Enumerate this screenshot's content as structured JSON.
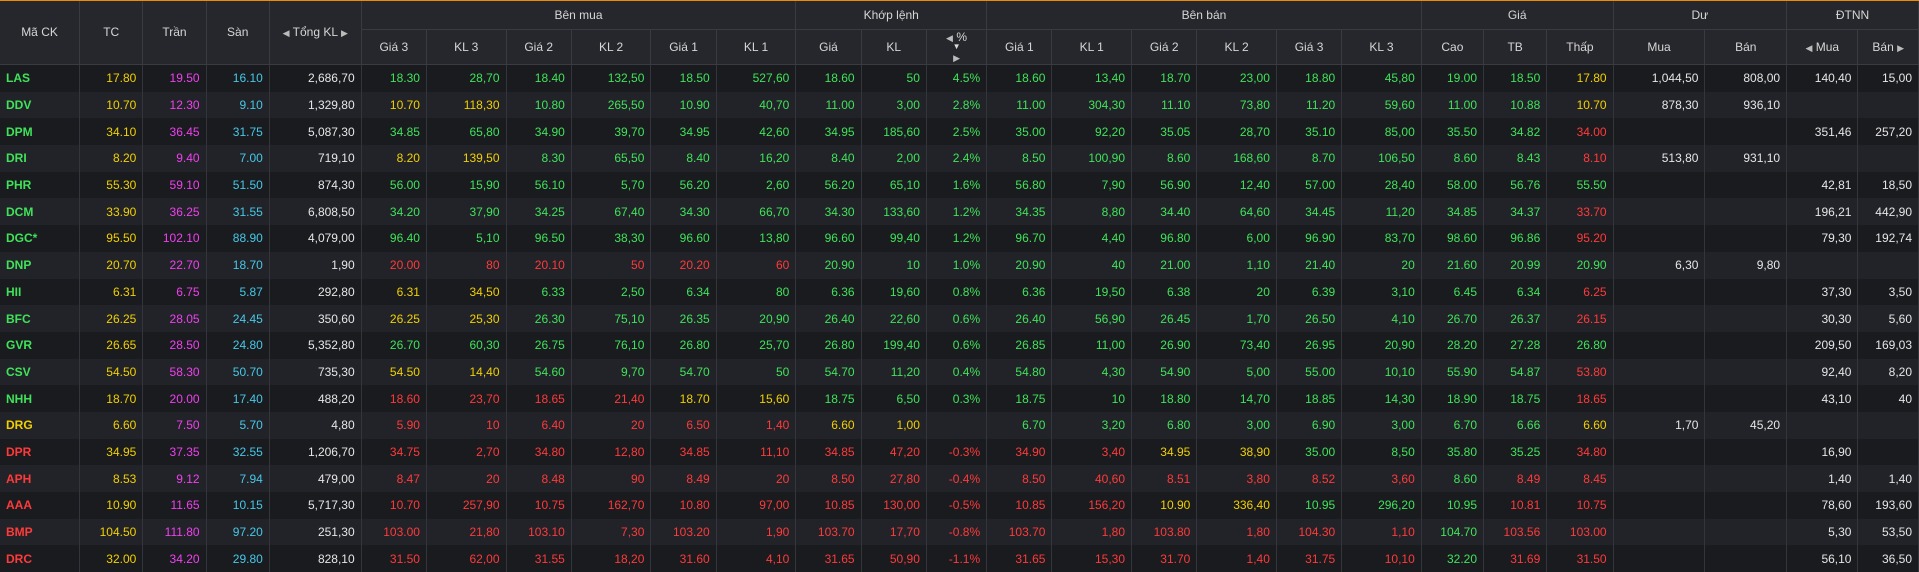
{
  "headers": {
    "ma_ck": "Mã CK",
    "tc": "TC",
    "tran": "Trần",
    "san": "Sàn",
    "tong_kl": "Tổng KL",
    "ben_mua": "Bên mua",
    "khop_lenh": "Khớp lệnh",
    "ben_ban": "Bên bán",
    "gia": "Giá",
    "du": "Dư",
    "dtnn": "ĐTNN",
    "gia3": "Giá 3",
    "kl3": "KL 3",
    "gia2": "Giá 2",
    "kl2": "KL 2",
    "gia1": "Giá 1",
    "kl1": "KL 1",
    "kl_gia": "Giá",
    "kl_kl": "KL",
    "kl_pct": "%",
    "cao": "Cao",
    "tb": "TB",
    "thap": "Thấp",
    "mua": "Mua",
    "ban": "Bán"
  },
  "colors": {
    "up": "#3fe35a",
    "ref": "#f2d000",
    "down": "#ff3a3a",
    "ceil": "#f040f0",
    "floor": "#46c8e8"
  },
  "rows": [
    {
      "sym": "LAS",
      "st": "u",
      "tc": "17.80",
      "tran": "19.50",
      "san": "16.10",
      "tong": "2,686,70",
      "b3": "18.30",
      "b3c": "u",
      "bk3": "28,70",
      "b2": "18.40",
      "b2c": "u",
      "bk2": "132,50",
      "b1": "18.50",
      "b1c": "u",
      "bk1": "527,60",
      "mg": "18.60",
      "mk": "50",
      "mp": "4.5%",
      "mc": "u",
      "s1": "18.60",
      "s1c": "u",
      "sk1": "13,40",
      "s2": "18.70",
      "s2c": "u",
      "sk2": "23,00",
      "s3": "18.80",
      "s3c": "u",
      "sk3": "45,80",
      "cao": "19.00",
      "caoc": "u",
      "tb": "18.50",
      "tbc": "u",
      "thap": "17.80",
      "thapc": "r",
      "dm": "1,044,50",
      "db": "808,00",
      "nm": "140,40",
      "nb": "15,00"
    },
    {
      "sym": "DDV",
      "st": "u",
      "tc": "10.70",
      "tran": "12.30",
      "san": "9.10",
      "tong": "1,329,80",
      "b3": "10.70",
      "b3c": "r",
      "bk3": "118,30",
      "b2": "10.80",
      "b2c": "u",
      "bk2": "265,50",
      "b1": "10.90",
      "b1c": "u",
      "bk1": "40,70",
      "mg": "11.00",
      "mk": "3,00",
      "mp": "2.8%",
      "mc": "u",
      "s1": "11.00",
      "s1c": "u",
      "sk1": "304,30",
      "s2": "11.10",
      "s2c": "u",
      "sk2": "73,80",
      "s3": "11.20",
      "s3c": "u",
      "sk3": "59,60",
      "cao": "11.00",
      "caoc": "u",
      "tb": "10.88",
      "tbc": "u",
      "thap": "10.70",
      "thapc": "r",
      "dm": "878,30",
      "db": "936,10",
      "nm": "",
      "nb": ""
    },
    {
      "sym": "DPM",
      "st": "u",
      "tc": "34.10",
      "tran": "36.45",
      "san": "31.75",
      "tong": "5,087,30",
      "b3": "34.85",
      "b3c": "u",
      "bk3": "65,80",
      "b2": "34.90",
      "b2c": "u",
      "bk2": "39,70",
      "b1": "34.95",
      "b1c": "u",
      "bk1": "42,60",
      "mg": "34.95",
      "mk": "185,60",
      "mp": "2.5%",
      "mc": "u",
      "s1": "35.00",
      "s1c": "u",
      "sk1": "92,20",
      "s2": "35.05",
      "s2c": "u",
      "sk2": "28,70",
      "s3": "35.10",
      "s3c": "u",
      "sk3": "85,00",
      "cao": "35.50",
      "caoc": "u",
      "tb": "34.82",
      "tbc": "u",
      "thap": "34.00",
      "thapc": "d",
      "dm": "",
      "db": "",
      "nm": "351,46",
      "nb": "257,20"
    },
    {
      "sym": "DRI",
      "st": "u",
      "tc": "8.20",
      "tran": "9.40",
      "san": "7.00",
      "tong": "719,10",
      "b3": "8.20",
      "b3c": "r",
      "bk3": "139,50",
      "b2": "8.30",
      "b2c": "u",
      "bk2": "65,50",
      "b1": "8.40",
      "b1c": "u",
      "bk1": "16,20",
      "mg": "8.40",
      "mk": "2,00",
      "mp": "2.4%",
      "mc": "u",
      "s1": "8.50",
      "s1c": "u",
      "sk1": "100,90",
      "s2": "8.60",
      "s2c": "u",
      "sk2": "168,60",
      "s3": "8.70",
      "s3c": "u",
      "sk3": "106,50",
      "cao": "8.60",
      "caoc": "u",
      "tb": "8.43",
      "tbc": "u",
      "thap": "8.10",
      "thapc": "d",
      "dm": "513,80",
      "db": "931,10",
      "nm": "",
      "nb": ""
    },
    {
      "sym": "PHR",
      "st": "u",
      "tc": "55.30",
      "tran": "59.10",
      "san": "51.50",
      "tong": "874,30",
      "b3": "56.00",
      "b3c": "u",
      "bk3": "15,90",
      "b2": "56.10",
      "b2c": "u",
      "bk2": "5,70",
      "b1": "56.20",
      "b1c": "u",
      "bk1": "2,60",
      "mg": "56.20",
      "mk": "65,10",
      "mp": "1.6%",
      "mc": "u",
      "s1": "56.80",
      "s1c": "u",
      "sk1": "7,90",
      "s2": "56.90",
      "s2c": "u",
      "sk2": "12,40",
      "s3": "57.00",
      "s3c": "u",
      "sk3": "28,40",
      "cao": "58.00",
      "caoc": "u",
      "tb": "56.76",
      "tbc": "u",
      "thap": "55.50",
      "thapc": "u",
      "dm": "",
      "db": "",
      "nm": "42,81",
      "nb": "18,50"
    },
    {
      "sym": "DCM",
      "st": "u",
      "tc": "33.90",
      "tran": "36.25",
      "san": "31.55",
      "tong": "6,808,50",
      "b3": "34.20",
      "b3c": "u",
      "bk3": "37,90",
      "b2": "34.25",
      "b2c": "u",
      "bk2": "67,40",
      "b1": "34.30",
      "b1c": "u",
      "bk1": "66,70",
      "mg": "34.30",
      "mk": "133,60",
      "mp": "1.2%",
      "mc": "u",
      "s1": "34.35",
      "s1c": "u",
      "sk1": "8,80",
      "s2": "34.40",
      "s2c": "u",
      "sk2": "64,60",
      "s3": "34.45",
      "s3c": "u",
      "sk3": "11,20",
      "cao": "34.85",
      "caoc": "u",
      "tb": "34.37",
      "tbc": "u",
      "thap": "33.70",
      "thapc": "d",
      "dm": "",
      "db": "",
      "nm": "196,21",
      "nb": "442,90"
    },
    {
      "sym": "DGC*",
      "st": "u",
      "tc": "95.50",
      "tran": "102.10",
      "san": "88.90",
      "tong": "4,079,00",
      "b3": "96.40",
      "b3c": "u",
      "bk3": "5,10",
      "b2": "96.50",
      "b2c": "u",
      "bk2": "38,30",
      "b1": "96.60",
      "b1c": "u",
      "bk1": "13,80",
      "mg": "96.60",
      "mk": "99,40",
      "mp": "1.2%",
      "mc": "u",
      "s1": "96.70",
      "s1c": "u",
      "sk1": "4,40",
      "s2": "96.80",
      "s2c": "u",
      "sk2": "6,00",
      "s3": "96.90",
      "s3c": "u",
      "sk3": "83,70",
      "cao": "98.60",
      "caoc": "u",
      "tb": "96.86",
      "tbc": "u",
      "thap": "95.20",
      "thapc": "d",
      "dm": "",
      "db": "",
      "nm": "79,30",
      "nb": "192,74"
    },
    {
      "sym": "DNP",
      "st": "u",
      "tc": "20.70",
      "tran": "22.70",
      "san": "18.70",
      "tong": "1,90",
      "b3": "20.00",
      "b3c": "d",
      "bk3": "80",
      "b2": "20.10",
      "b2c": "d",
      "bk2": "50",
      "b1": "20.20",
      "b1c": "d",
      "bk1": "60",
      "mg": "20.90",
      "mk": "10",
      "mp": "1.0%",
      "mc": "u",
      "s1": "20.90",
      "s1c": "u",
      "sk1": "40",
      "s2": "21.00",
      "s2c": "u",
      "sk2": "1,10",
      "s3": "21.40",
      "s3c": "u",
      "sk3": "20",
      "cao": "21.60",
      "caoc": "u",
      "tb": "20.99",
      "tbc": "u",
      "thap": "20.90",
      "thapc": "u",
      "dm": "6,30",
      "db": "9,80",
      "nm": "",
      "nb": ""
    },
    {
      "sym": "HII",
      "st": "u",
      "tc": "6.31",
      "tran": "6.75",
      "san": "5.87",
      "tong": "292,80",
      "b3": "6.31",
      "b3c": "r",
      "bk3": "34,50",
      "b2": "6.33",
      "b2c": "u",
      "bk2": "2,50",
      "b1": "6.34",
      "b1c": "u",
      "bk1": "80",
      "mg": "6.36",
      "mk": "19,60",
      "mp": "0.8%",
      "mc": "u",
      "s1": "6.36",
      "s1c": "u",
      "sk1": "19,50",
      "s2": "6.38",
      "s2c": "u",
      "sk2": "20",
      "s3": "6.39",
      "s3c": "u",
      "sk3": "3,10",
      "cao": "6.45",
      "caoc": "u",
      "tb": "6.34",
      "tbc": "u",
      "thap": "6.25",
      "thapc": "d",
      "dm": "",
      "db": "",
      "nm": "37,30",
      "nb": "3,50"
    },
    {
      "sym": "BFC",
      "st": "u",
      "tc": "26.25",
      "tran": "28.05",
      "san": "24.45",
      "tong": "350,60",
      "b3": "26.25",
      "b3c": "r",
      "bk3": "25,30",
      "b2": "26.30",
      "b2c": "u",
      "bk2": "75,10",
      "b1": "26.35",
      "b1c": "u",
      "bk1": "20,90",
      "mg": "26.40",
      "mk": "22,60",
      "mp": "0.6%",
      "mc": "u",
      "s1": "26.40",
      "s1c": "u",
      "sk1": "56,90",
      "s2": "26.45",
      "s2c": "u",
      "sk2": "1,70",
      "s3": "26.50",
      "s3c": "u",
      "sk3": "4,10",
      "cao": "26.70",
      "caoc": "u",
      "tb": "26.37",
      "tbc": "u",
      "thap": "26.15",
      "thapc": "d",
      "dm": "",
      "db": "",
      "nm": "30,30",
      "nb": "5,60"
    },
    {
      "sym": "GVR",
      "st": "u",
      "tc": "26.65",
      "tran": "28.50",
      "san": "24.80",
      "tong": "5,352,80",
      "b3": "26.70",
      "b3c": "u",
      "bk3": "60,30",
      "b2": "26.75",
      "b2c": "u",
      "bk2": "76,10",
      "b1": "26.80",
      "b1c": "u",
      "bk1": "25,70",
      "mg": "26.80",
      "mk": "199,40",
      "mp": "0.6%",
      "mc": "u",
      "s1": "26.85",
      "s1c": "u",
      "sk1": "11,00",
      "s2": "26.90",
      "s2c": "u",
      "sk2": "73,40",
      "s3": "26.95",
      "s3c": "u",
      "sk3": "20,90",
      "cao": "28.20",
      "caoc": "u",
      "tb": "27.28",
      "tbc": "u",
      "thap": "26.80",
      "thapc": "u",
      "dm": "",
      "db": "",
      "nm": "209,50",
      "nb": "169,03"
    },
    {
      "sym": "CSV",
      "st": "u",
      "tc": "54.50",
      "tran": "58.30",
      "san": "50.70",
      "tong": "735,30",
      "b3": "54.50",
      "b3c": "r",
      "bk3": "14,40",
      "b2": "54.60",
      "b2c": "u",
      "bk2": "9,70",
      "b1": "54.70",
      "b1c": "u",
      "bk1": "50",
      "mg": "54.70",
      "mk": "11,20",
      "mp": "0.4%",
      "mc": "u",
      "s1": "54.80",
      "s1c": "u",
      "sk1": "4,30",
      "s2": "54.90",
      "s2c": "u",
      "sk2": "5,00",
      "s3": "55.00",
      "s3c": "u",
      "sk3": "10,10",
      "cao": "55.90",
      "caoc": "u",
      "tb": "54.87",
      "tbc": "u",
      "thap": "53.80",
      "thapc": "d",
      "dm": "",
      "db": "",
      "nm": "92,40",
      "nb": "8,20"
    },
    {
      "sym": "NHH",
      "st": "u",
      "tc": "18.70",
      "tran": "20.00",
      "san": "17.40",
      "tong": "488,20",
      "b3": "18.60",
      "b3c": "d",
      "bk3": "23,70",
      "b2": "18.65",
      "b2c": "d",
      "bk2": "21,40",
      "b1": "18.70",
      "b1c": "r",
      "bk1": "15,60",
      "mg": "18.75",
      "mk": "6,50",
      "mp": "0.3%",
      "mc": "u",
      "s1": "18.75",
      "s1c": "u",
      "sk1": "10",
      "s2": "18.80",
      "s2c": "u",
      "sk2": "14,70",
      "s3": "18.85",
      "s3c": "u",
      "sk3": "14,30",
      "cao": "18.90",
      "caoc": "u",
      "tb": "18.75",
      "tbc": "u",
      "thap": "18.65",
      "thapc": "d",
      "dm": "",
      "db": "",
      "nm": "43,10",
      "nb": "40"
    },
    {
      "sym": "DRG",
      "st": "r",
      "tc": "6.60",
      "tran": "7.50",
      "san": "5.70",
      "tong": "4,80",
      "b3": "5.90",
      "b3c": "d",
      "bk3": "10",
      "b2": "6.40",
      "b2c": "d",
      "bk2": "20",
      "b1": "6.50",
      "b1c": "d",
      "bk1": "1,40",
      "mg": "6.60",
      "mk": "1,00",
      "mp": "",
      "mc": "r",
      "s1": "6.70",
      "s1c": "u",
      "sk1": "3,20",
      "s2": "6.80",
      "s2c": "u",
      "sk2": "3,00",
      "s3": "6.90",
      "s3c": "u",
      "sk3": "3,00",
      "cao": "6.70",
      "caoc": "u",
      "tb": "6.66",
      "tbc": "u",
      "thap": "6.60",
      "thapc": "r",
      "dm": "1,70",
      "db": "45,20",
      "nm": "",
      "nb": ""
    },
    {
      "sym": "DPR",
      "st": "d",
      "tc": "34.95",
      "tran": "37.35",
      "san": "32.55",
      "tong": "1,206,70",
      "b3": "34.75",
      "b3c": "d",
      "bk3": "2,70",
      "b2": "34.80",
      "b2c": "d",
      "bk2": "12,80",
      "b1": "34.85",
      "b1c": "d",
      "bk1": "11,10",
      "mg": "34.85",
      "mk": "47,20",
      "mp": "-0.3%",
      "mc": "d",
      "s1": "34.90",
      "s1c": "d",
      "sk1": "3,40",
      "s2": "34.95",
      "s2c": "r",
      "sk2": "38,90",
      "s3": "35.00",
      "s3c": "u",
      "sk3": "8,50",
      "cao": "35.80",
      "caoc": "u",
      "tb": "35.25",
      "tbc": "u",
      "thap": "34.80",
      "thapc": "d",
      "dm": "",
      "db": "",
      "nm": "16,90",
      "nb": ""
    },
    {
      "sym": "APH",
      "st": "d",
      "tc": "8.53",
      "tran": "9.12",
      "san": "7.94",
      "tong": "479,00",
      "b3": "8.47",
      "b3c": "d",
      "bk3": "20",
      "b2": "8.48",
      "b2c": "d",
      "bk2": "90",
      "b1": "8.49",
      "b1c": "d",
      "bk1": "20",
      "mg": "8.50",
      "mk": "27,80",
      "mp": "-0.4%",
      "mc": "d",
      "s1": "8.50",
      "s1c": "d",
      "sk1": "40,60",
      "s2": "8.51",
      "s2c": "d",
      "sk2": "3,80",
      "s3": "8.52",
      "s3c": "d",
      "sk3": "3,60",
      "cao": "8.60",
      "caoc": "u",
      "tb": "8.49",
      "tbc": "d",
      "thap": "8.45",
      "thapc": "d",
      "dm": "",
      "db": "",
      "nm": "1,40",
      "nb": "1,40"
    },
    {
      "sym": "AAA",
      "st": "d",
      "tc": "10.90",
      "tran": "11.65",
      "san": "10.15",
      "tong": "5,717,30",
      "b3": "10.70",
      "b3c": "d",
      "bk3": "257,90",
      "b2": "10.75",
      "b2c": "d",
      "bk2": "162,70",
      "b1": "10.80",
      "b1c": "d",
      "bk1": "97,00",
      "mg": "10.85",
      "mk": "130,00",
      "mp": "-0.5%",
      "mc": "d",
      "s1": "10.85",
      "s1c": "d",
      "sk1": "156,20",
      "s2": "10.90",
      "s2c": "r",
      "sk2": "336,40",
      "s3": "10.95",
      "s3c": "u",
      "sk3": "296,20",
      "cao": "10.95",
      "caoc": "u",
      "tb": "10.81",
      "tbc": "d",
      "thap": "10.75",
      "thapc": "d",
      "dm": "",
      "db": "",
      "nm": "78,60",
      "nb": "193,60"
    },
    {
      "sym": "BMP",
      "st": "d",
      "tc": "104.50",
      "tran": "111.80",
      "san": "97.20",
      "tong": "251,30",
      "b3": "103.00",
      "b3c": "d",
      "bk3": "21,80",
      "b2": "103.10",
      "b2c": "d",
      "bk2": "7,30",
      "b1": "103.20",
      "b1c": "d",
      "bk1": "1,90",
      "mg": "103.70",
      "mk": "17,70",
      "mp": "-0.8%",
      "mc": "d",
      "s1": "103.70",
      "s1c": "d",
      "sk1": "1,80",
      "s2": "103.80",
      "s2c": "d",
      "sk2": "1,80",
      "s3": "104.30",
      "s3c": "d",
      "sk3": "1,10",
      "cao": "104.70",
      "caoc": "u",
      "tb": "103.56",
      "tbc": "d",
      "thap": "103.00",
      "thapc": "d",
      "dm": "",
      "db": "",
      "nm": "5,30",
      "nb": "53,50"
    },
    {
      "sym": "DRC",
      "st": "d",
      "tc": "32.00",
      "tran": "34.20",
      "san": "29.80",
      "tong": "828,10",
      "b3": "31.50",
      "b3c": "d",
      "bk3": "62,00",
      "b2": "31.55",
      "b2c": "d",
      "bk2": "18,20",
      "b1": "31.60",
      "b1c": "d",
      "bk1": "4,10",
      "mg": "31.65",
      "mk": "50,90",
      "mp": "-1.1%",
      "mc": "d",
      "s1": "31.65",
      "s1c": "d",
      "sk1": "15,30",
      "s2": "31.70",
      "s2c": "d",
      "sk2": "1,40",
      "s3": "31.75",
      "s3c": "d",
      "sk3": "10,10",
      "cao": "32.20",
      "caoc": "u",
      "tb": "31.69",
      "tbc": "d",
      "thap": "31.50",
      "thapc": "d",
      "dm": "",
      "db": "",
      "nm": "56,10",
      "nb": "36,50"
    }
  ]
}
